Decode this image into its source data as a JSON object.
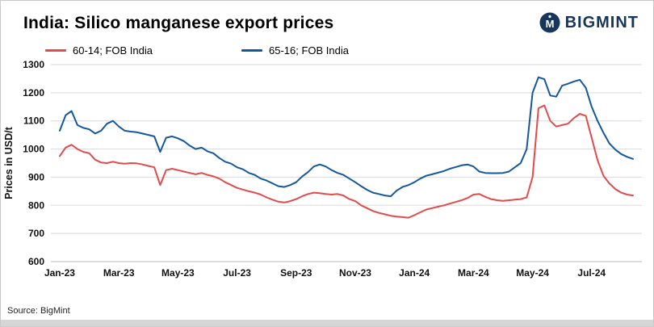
{
  "header": {
    "title": "India: Silico manganese export prices",
    "logo_text": "BIGMINT"
  },
  "source": "Source: BigMint",
  "chart_data": {
    "type": "line",
    "title": "India: Silico manganese export prices",
    "xlabel": "",
    "ylabel": "Prices in USD/t",
    "ylim": [
      600,
      1300
    ],
    "ytick_step": 100,
    "grid": "horizontal",
    "legend_position": "top-left",
    "x_unit": "months since Jan-2023",
    "x_start": 0,
    "x_step": 0.2,
    "xlim": [
      -0.3,
      19.7
    ],
    "xticks": [
      {
        "x": 0,
        "label": "Jan-23"
      },
      {
        "x": 2,
        "label": "Mar-23"
      },
      {
        "x": 4,
        "label": "May-23"
      },
      {
        "x": 6,
        "label": "Jul-23"
      },
      {
        "x": 8,
        "label": "Sep-23"
      },
      {
        "x": 10,
        "label": "Nov-23"
      },
      {
        "x": 12,
        "label": "Jan-24"
      },
      {
        "x": 14,
        "label": "Mar-24"
      },
      {
        "x": 16,
        "label": "May-24"
      },
      {
        "x": 18,
        "label": "Jul-24"
      }
    ],
    "series": [
      {
        "name": "60-14; FOB India",
        "color": "#e14b4b",
        "values": [
          975,
          1005,
          1015,
          1000,
          990,
          985,
          962,
          952,
          950,
          955,
          950,
          948,
          950,
          949,
          945,
          940,
          935,
          872,
          925,
          930,
          925,
          920,
          915,
          910,
          915,
          908,
          903,
          895,
          882,
          872,
          862,
          856,
          850,
          845,
          838,
          828,
          820,
          813,
          810,
          815,
          822,
          832,
          840,
          845,
          843,
          840,
          838,
          840,
          835,
          822,
          815,
          800,
          790,
          780,
          773,
          768,
          763,
          760,
          758,
          756,
          765,
          775,
          785,
          790,
          795,
          800,
          806,
          812,
          818,
          826,
          838,
          840,
          830,
          822,
          818,
          816,
          818,
          820,
          822,
          828,
          900,
          1145,
          1155,
          1100,
          1080,
          1085,
          1090,
          1110,
          1125,
          1118,
          1040,
          960,
          905,
          878,
          858,
          845,
          838,
          835
        ]
      },
      {
        "name": "65-16; FOB India",
        "color": "#1457a0",
        "values": [
          1065,
          1120,
          1135,
          1085,
          1075,
          1070,
          1055,
          1065,
          1090,
          1100,
          1080,
          1065,
          1062,
          1060,
          1055,
          1050,
          1045,
          990,
          1040,
          1045,
          1038,
          1028,
          1012,
          1000,
          1005,
          992,
          985,
          968,
          955,
          948,
          935,
          928,
          915,
          908,
          895,
          888,
          878,
          868,
          865,
          872,
          882,
          902,
          918,
          938,
          945,
          938,
          925,
          915,
          908,
          895,
          882,
          868,
          855,
          845,
          840,
          835,
          832,
          852,
          865,
          872,
          882,
          895,
          905,
          910,
          916,
          922,
          930,
          936,
          942,
          945,
          938,
          920,
          915,
          914,
          914,
          915,
          920,
          935,
          950,
          1000,
          1200,
          1255,
          1248,
          1190,
          1186,
          1225,
          1232,
          1240,
          1246,
          1218,
          1150,
          1100,
          1058,
          1020,
          998,
          982,
          972,
          965
        ]
      }
    ]
  }
}
